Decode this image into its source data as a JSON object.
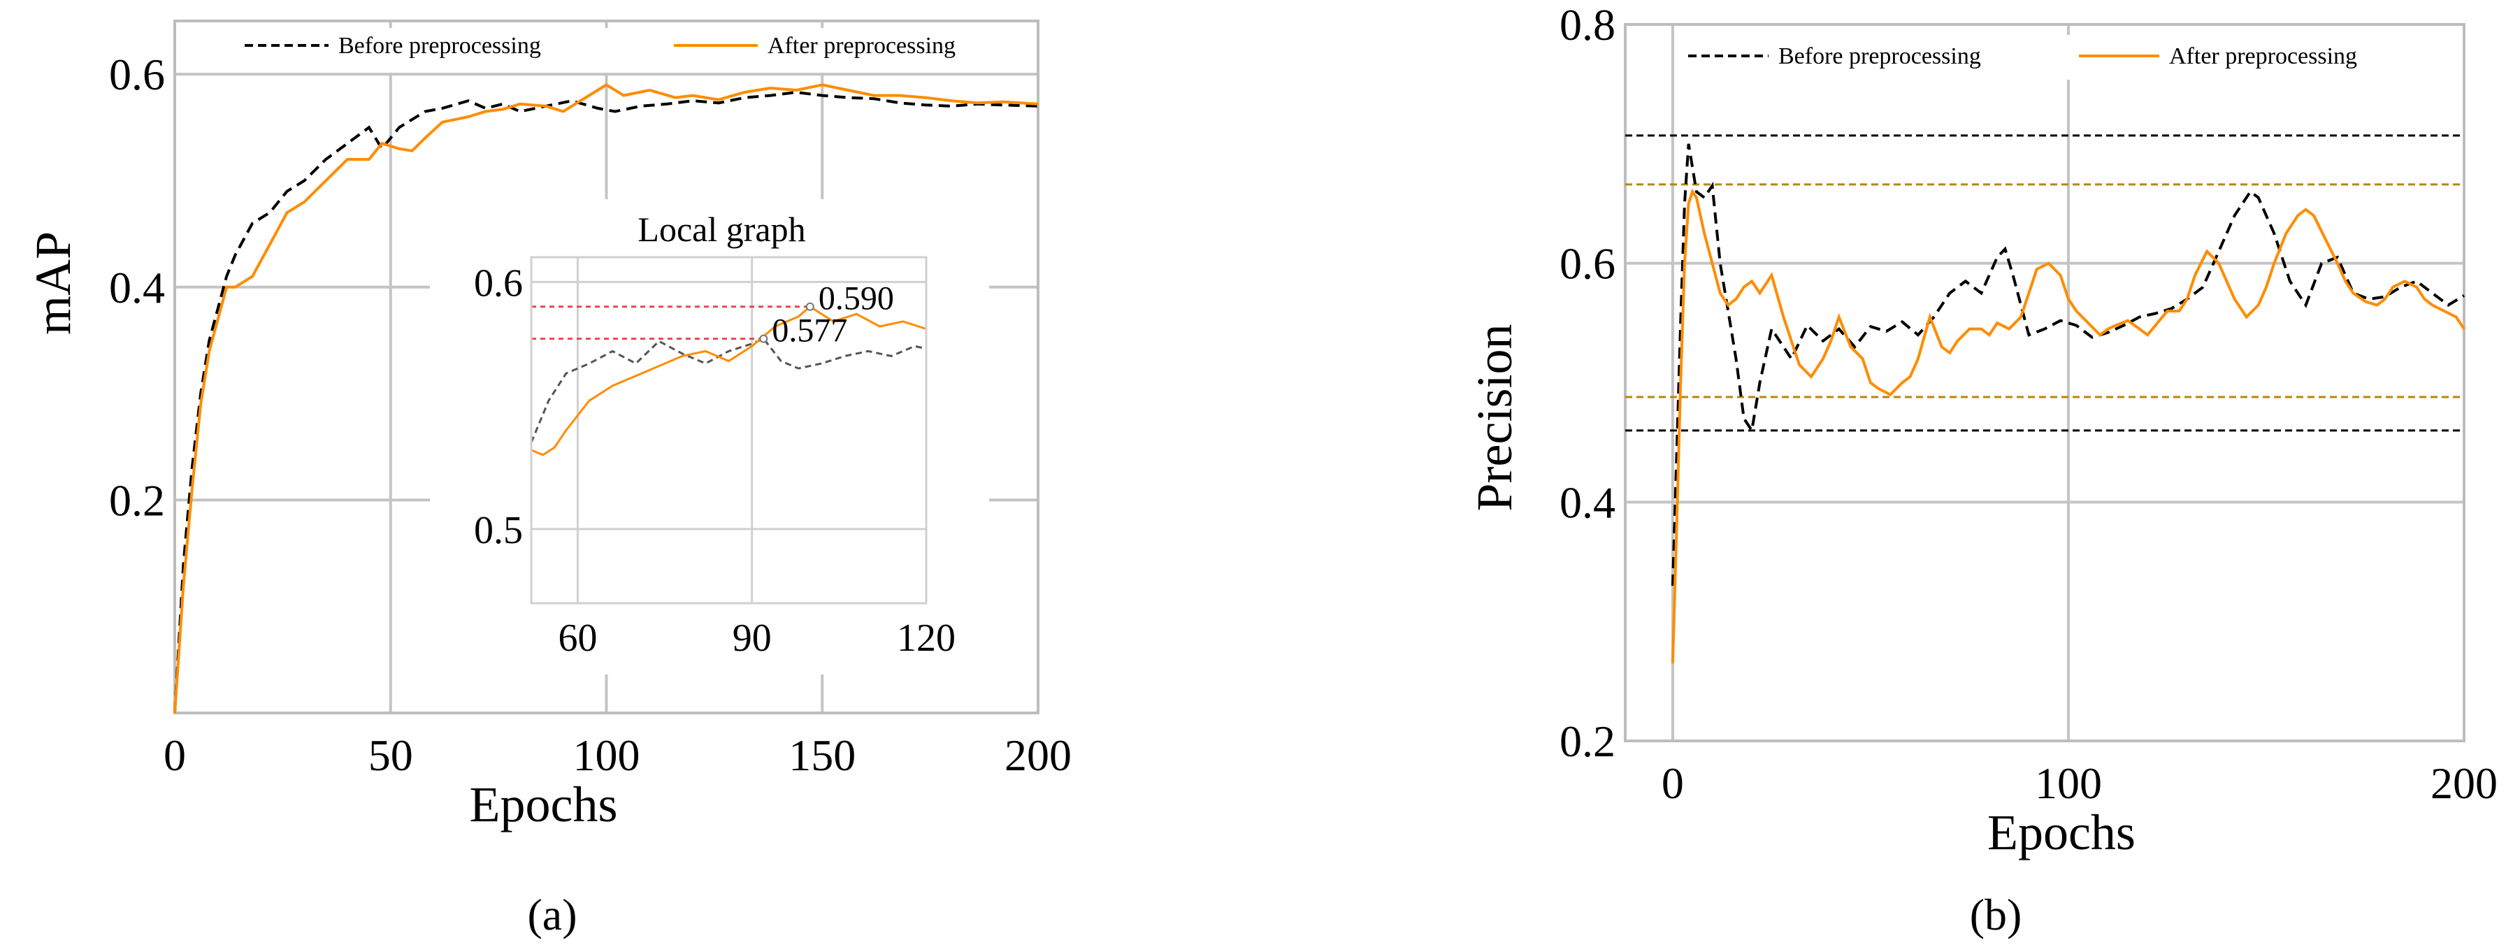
{
  "colors": {
    "before": "#000000",
    "after": "#ff8c00",
    "ref_before": "#000000",
    "ref_after": "#b8860b",
    "inset_ref": "#e8474e"
  },
  "captions": {
    "a": "(a)",
    "b": "(b)"
  },
  "chart_data": [
    {
      "type": "line",
      "panel": "a",
      "xlabel": "Epochs",
      "ylabel": "mAP",
      "xlim": [
        0,
        200
      ],
      "ylim": [
        0,
        0.65
      ],
      "x_ticks": [
        0,
        50,
        100,
        150,
        200
      ],
      "y_ticks": [
        0.2,
        0.4,
        0.6
      ],
      "grid": true,
      "legend": "top",
      "series": [
        {
          "name": "Before preprocessing",
          "style": "dashed",
          "x": [
            0,
            2,
            4,
            6,
            8,
            10,
            12,
            14,
            18,
            22,
            26,
            30,
            35,
            40,
            45,
            48,
            52,
            58,
            62,
            68,
            72,
            76,
            80,
            86,
            92,
            98,
            102,
            108,
            114,
            120,
            126,
            132,
            138,
            144,
            150,
            156,
            162,
            168,
            174,
            180,
            186,
            192,
            200
          ],
          "y": [
            0.0,
            0.14,
            0.23,
            0.3,
            0.35,
            0.38,
            0.41,
            0.43,
            0.46,
            0.47,
            0.49,
            0.5,
            0.52,
            0.535,
            0.55,
            0.53,
            0.55,
            0.565,
            0.568,
            0.575,
            0.568,
            0.572,
            0.565,
            0.57,
            0.575,
            0.568,
            0.565,
            0.57,
            0.572,
            0.575,
            0.573,
            0.578,
            0.58,
            0.583,
            0.58,
            0.578,
            0.577,
            0.573,
            0.571,
            0.57,
            0.572,
            0.571,
            0.57
          ]
        },
        {
          "name": "After preprocessing",
          "style": "solid",
          "x": [
            0,
            2,
            4,
            6,
            8,
            10,
            12,
            14,
            18,
            22,
            26,
            30,
            35,
            40,
            45,
            48,
            52,
            55,
            58,
            62,
            68,
            72,
            76,
            80,
            86,
            90,
            94,
            98,
            100,
            104,
            110,
            116,
            120,
            126,
            132,
            138,
            144,
            150,
            156,
            162,
            168,
            174,
            180,
            186,
            192,
            200
          ],
          "y": [
            0.0,
            0.12,
            0.21,
            0.29,
            0.34,
            0.37,
            0.4,
            0.4,
            0.41,
            0.44,
            0.47,
            0.48,
            0.5,
            0.52,
            0.52,
            0.535,
            0.53,
            0.528,
            0.54,
            0.555,
            0.56,
            0.565,
            0.567,
            0.572,
            0.57,
            0.565,
            0.575,
            0.585,
            0.59,
            0.58,
            0.585,
            0.578,
            0.58,
            0.576,
            0.583,
            0.587,
            0.585,
            0.59,
            0.585,
            0.58,
            0.58,
            0.578,
            0.575,
            0.573,
            0.574,
            0.572
          ]
        }
      ],
      "inset": {
        "title": "Local graph",
        "xlim": [
          52,
          120
        ],
        "ylim": [
          0.47,
          0.61
        ],
        "x_ticks": [
          60,
          90,
          120
        ],
        "y_ticks": [
          0.5,
          0.6
        ],
        "annotations": [
          {
            "label": "0.590",
            "x": 100,
            "y": 0.59
          },
          {
            "label": "0.577",
            "x": 92,
            "y": 0.577
          }
        ],
        "series": [
          {
            "name": "Before preprocessing",
            "style": "dashed",
            "x": [
              52,
              55,
              58,
              62,
              66,
              70,
              74,
              78,
              82,
              86,
              90,
              92,
              95,
              98,
              102,
              106,
              110,
              114,
              118,
              120
            ],
            "y": [
              0.535,
              0.552,
              0.563,
              0.567,
              0.572,
              0.567,
              0.576,
              0.571,
              0.567,
              0.572,
              0.575,
              0.577,
              0.568,
              0.565,
              0.567,
              0.57,
              0.572,
              0.57,
              0.574,
              0.573
            ]
          },
          {
            "name": "After preprocessing",
            "style": "solid",
            "x": [
              52,
              54,
              56,
              58,
              62,
              66,
              70,
              74,
              78,
              82,
              86,
              90,
              94,
              98,
              100,
              104,
              108,
              112,
              116,
              120
            ],
            "y": [
              0.532,
              0.53,
              0.533,
              0.54,
              0.552,
              0.558,
              0.562,
              0.566,
              0.57,
              0.572,
              0.568,
              0.574,
              0.582,
              0.586,
              0.59,
              0.584,
              0.587,
              0.582,
              0.584,
              0.581
            ]
          }
        ]
      }
    },
    {
      "type": "line",
      "panel": "b",
      "xlabel": "Epochs",
      "ylabel": "Precision",
      "xlim": [
        -12,
        200
      ],
      "ylim": [
        0.2,
        0.8
      ],
      "x_ticks": [
        0,
        100,
        200
      ],
      "y_ticks": [
        0.2,
        0.4,
        0.6,
        0.8
      ],
      "grid": true,
      "legend": "top",
      "reference_lines": [
        {
          "series": "Before preprocessing",
          "y": 0.707
        },
        {
          "series": "Before preprocessing",
          "y": 0.46
        },
        {
          "series": "After preprocessing",
          "y": 0.666
        },
        {
          "series": "After preprocessing",
          "y": 0.488
        }
      ],
      "series": [
        {
          "name": "Before preprocessing",
          "style": "dashed",
          "x": [
            0,
            1,
            2,
            3,
            4,
            6,
            8,
            10,
            12,
            14,
            16,
            18,
            20,
            22,
            25,
            28,
            30,
            34,
            38,
            42,
            46,
            50,
            54,
            58,
            62,
            66,
            70,
            74,
            78,
            82,
            84,
            86,
            90,
            94,
            98,
            102,
            106,
            110,
            114,
            118,
            122,
            126,
            130,
            134,
            138,
            142,
            146,
            148,
            152,
            156,
            160,
            164,
            168,
            172,
            176,
            180,
            184,
            188,
            192,
            196,
            200
          ],
          "y": [
            0.33,
            0.44,
            0.55,
            0.65,
            0.7,
            0.66,
            0.655,
            0.665,
            0.6,
            0.56,
            0.52,
            0.47,
            0.46,
            0.5,
            0.545,
            0.53,
            0.52,
            0.548,
            0.535,
            0.545,
            0.53,
            0.547,
            0.543,
            0.551,
            0.54,
            0.555,
            0.575,
            0.585,
            0.575,
            0.605,
            0.612,
            0.59,
            0.54,
            0.545,
            0.552,
            0.548,
            0.538,
            0.542,
            0.548,
            0.555,
            0.558,
            0.562,
            0.57,
            0.58,
            0.61,
            0.64,
            0.66,
            0.655,
            0.625,
            0.585,
            0.565,
            0.6,
            0.605,
            0.575,
            0.57,
            0.572,
            0.58,
            0.585,
            0.575,
            0.565,
            0.573
          ]
        },
        {
          "name": "After preprocessing",
          "style": "solid",
          "x": [
            0,
            1,
            2,
            3,
            4,
            5,
            6,
            8,
            10,
            12,
            14,
            16,
            18,
            20,
            22,
            25,
            28,
            30,
            32,
            35,
            38,
            40,
            42,
            45,
            48,
            50,
            52,
            55,
            58,
            60,
            62,
            65,
            68,
            70,
            72,
            75,
            78,
            80,
            82,
            85,
            88,
            90,
            92,
            95,
            98,
            100,
            102,
            105,
            108,
            110,
            112,
            115,
            118,
            120,
            122,
            125,
            128,
            130,
            132,
            135,
            138,
            140,
            142,
            145,
            148,
            150,
            152,
            155,
            158,
            160,
            162,
            165,
            168,
            170,
            172,
            175,
            178,
            180,
            182,
            185,
            188,
            190,
            192,
            195,
            198,
            200
          ],
          "y": [
            0.265,
            0.38,
            0.5,
            0.6,
            0.65,
            0.66,
            0.655,
            0.625,
            0.6,
            0.575,
            0.565,
            0.57,
            0.58,
            0.585,
            0.575,
            0.59,
            0.555,
            0.535,
            0.515,
            0.505,
            0.52,
            0.535,
            0.555,
            0.53,
            0.52,
            0.5,
            0.495,
            0.49,
            0.5,
            0.505,
            0.52,
            0.555,
            0.53,
            0.525,
            0.535,
            0.545,
            0.545,
            0.54,
            0.55,
            0.545,
            0.555,
            0.575,
            0.595,
            0.6,
            0.59,
            0.57,
            0.56,
            0.55,
            0.54,
            0.545,
            0.548,
            0.552,
            0.545,
            0.54,
            0.548,
            0.56,
            0.56,
            0.57,
            0.59,
            0.61,
            0.6,
            0.585,
            0.57,
            0.555,
            0.565,
            0.58,
            0.6,
            0.625,
            0.64,
            0.645,
            0.64,
            0.62,
            0.6,
            0.585,
            0.575,
            0.568,
            0.565,
            0.57,
            0.58,
            0.585,
            0.58,
            0.57,
            0.565,
            0.56,
            0.555,
            0.545
          ]
        }
      ]
    }
  ]
}
